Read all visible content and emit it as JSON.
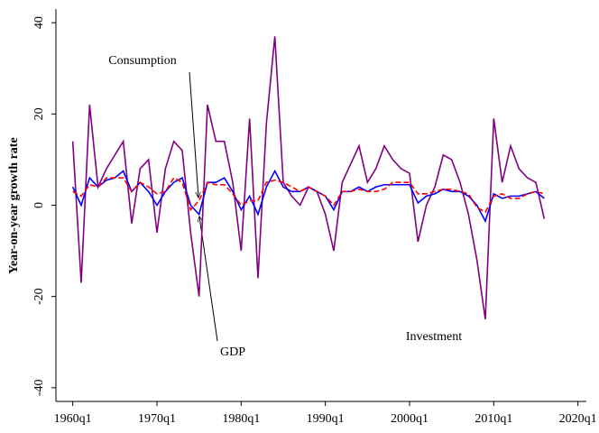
{
  "chart_data": {
    "type": "line",
    "ylabel": "Year-on-year growth rate",
    "annotations": [
      "Consumption",
      "GDP",
      "Investment"
    ],
    "xlim": [
      1958,
      2021
    ],
    "ylim": [
      -43,
      43
    ],
    "xticks": [
      {
        "value": 1960,
        "label": "1960q1"
      },
      {
        "value": 1970,
        "label": "1970q1"
      },
      {
        "value": 1980,
        "label": "1980q1"
      },
      {
        "value": 1990,
        "label": "1990q1"
      },
      {
        "value": 2000,
        "label": "2000q1"
      },
      {
        "value": 2010,
        "label": "2010q1"
      },
      {
        "value": 2020,
        "label": "2020q1"
      }
    ],
    "yticks": [
      -40,
      -20,
      0,
      20,
      40
    ],
    "grid": false,
    "x": [
      1960,
      1961,
      1962,
      1963,
      1964,
      1965,
      1966,
      1967,
      1968,
      1969,
      1970,
      1971,
      1972,
      1973,
      1974,
      1975,
      1976,
      1977,
      1978,
      1979,
      1980,
      1981,
      1982,
      1983,
      1984,
      1985,
      1986,
      1987,
      1988,
      1989,
      1990,
      1991,
      1992,
      1993,
      1994,
      1995,
      1996,
      1997,
      1998,
      1999,
      2000,
      2001,
      2002,
      2003,
      2004,
      2005,
      2006,
      2007,
      2008,
      2009,
      2010,
      2011,
      2012,
      2013,
      2014,
      2015,
      2016
    ],
    "series": [
      {
        "name": "Investment",
        "color": "#800080",
        "linestyle": "solid",
        "values": [
          14,
          -17,
          22,
          4,
          8,
          11,
          14,
          -4,
          8,
          10,
          -6,
          8,
          14,
          12,
          -6,
          -20,
          22,
          14,
          14,
          5,
          -10,
          19,
          -16,
          18,
          37,
          5,
          2,
          0,
          4,
          3,
          -2,
          -10,
          5,
          9,
          13,
          5,
          8,
          13,
          10,
          8,
          7,
          -8,
          0,
          4,
          11,
          10,
          5,
          -2,
          -12,
          -25,
          19,
          5,
          13,
          8,
          6,
          5,
          -3
        ]
      },
      {
        "name": "GDP",
        "color": "#0000ff",
        "linestyle": "solid",
        "values": [
          4,
          0,
          6,
          4,
          5.5,
          6,
          7.5,
          3,
          5,
          3,
          0,
          3,
          5,
          6,
          0,
          -2,
          5,
          5,
          6,
          3,
          -1,
          2,
          -2,
          4,
          7.5,
          4,
          3,
          3,
          4,
          3,
          2,
          -1,
          3,
          3,
          4,
          3,
          4,
          4.5,
          4.5,
          4.5,
          4.5,
          0.5,
          2,
          2.5,
          3.5,
          3,
          3,
          2,
          0,
          -3.5,
          2.5,
          1.5,
          2,
          2,
          2.5,
          3,
          1.5
        ]
      },
      {
        "name": "Consumption",
        "color": "#ff0000",
        "linestyle": "dashed",
        "values": [
          3,
          2,
          4.5,
          4,
          6,
          6,
          6,
          3,
          5,
          4,
          2.5,
          3,
          6,
          5,
          -1,
          1,
          5,
          4.5,
          4.5,
          2.5,
          0,
          1,
          1,
          5,
          5.5,
          5,
          4,
          3,
          4,
          3,
          2,
          0,
          3,
          3,
          3.5,
          3,
          3,
          3.5,
          5,
          5,
          5,
          2.5,
          2.5,
          3,
          3.5,
          3.5,
          3,
          2.5,
          -0.5,
          -1.5,
          2,
          2.5,
          1.5,
          1.5,
          2.5,
          3,
          2.5
        ]
      }
    ]
  }
}
